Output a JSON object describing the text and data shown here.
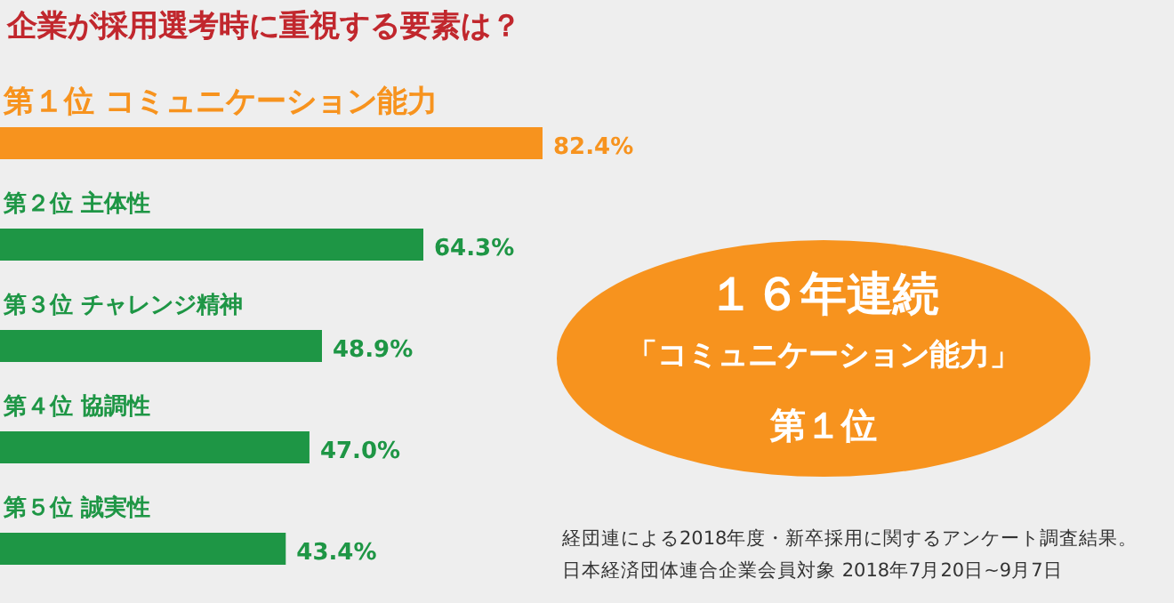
{
  "chart_data": {
    "type": "bar",
    "orientation": "horizontal",
    "title": "企業が採用選考時に重視する要素は？",
    "categories": [
      "第１位 コミュニケーション能力",
      "第２位 主体性",
      "第３位 チャレンジ精神",
      "第４位 協調性",
      "第５位 誠実性"
    ],
    "values": [
      82.4,
      64.3,
      48.9,
      47.0,
      43.4
    ],
    "value_labels": [
      "82.4%",
      "64.3%",
      "48.9%",
      "47.0%",
      "43.4%"
    ],
    "colors": [
      "#f7931e",
      "#1e9645",
      "#1e9645",
      "#1e9645",
      "#1e9645"
    ],
    "annotations": [
      "１６年連続",
      "「コミュニケーション能力」",
      "第１位",
      "経団連による2018年度・新卒採用に関するアンケート調査結果。",
      "日本経済団体連合企業会員対象 2018年7月20日~9月7日"
    ]
  }
}
